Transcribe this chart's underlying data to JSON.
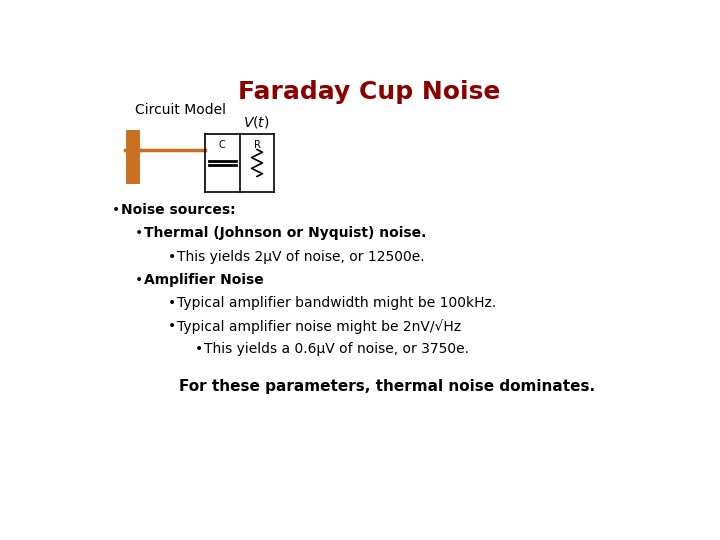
{
  "title": "Faraday Cup Noise",
  "title_color": "#8B0000",
  "title_fontsize": 18,
  "subtitle": "Circuit Model",
  "subtitle_fontsize": 10,
  "circuit_color": "#C87020",
  "background_color": "#ffffff",
  "bullet_lines": [
    {
      "level": 0,
      "text": "Noise sources:"
    },
    {
      "level": 1,
      "text": "Thermal (Johnson or Nyquist) noise."
    },
    {
      "level": 2,
      "text": "This yields 2μV of noise, or 12500e."
    },
    {
      "level": 1,
      "text": "Amplifier Noise"
    },
    {
      "level": 2,
      "text": "Typical amplifier bandwidth might be 100kHz."
    },
    {
      "level": 2,
      "text": "Typical amplifier noise might be 2nV/√Hz"
    },
    {
      "level": 3,
      "text": "This yields a 0.6μV of noise, or 3750e."
    }
  ],
  "footer": "For these parameters, thermal noise dominates.",
  "footer_fontsize": 11,
  "text_fontsize": 10,
  "bullet_bold_levels": [
    0,
    1
  ]
}
